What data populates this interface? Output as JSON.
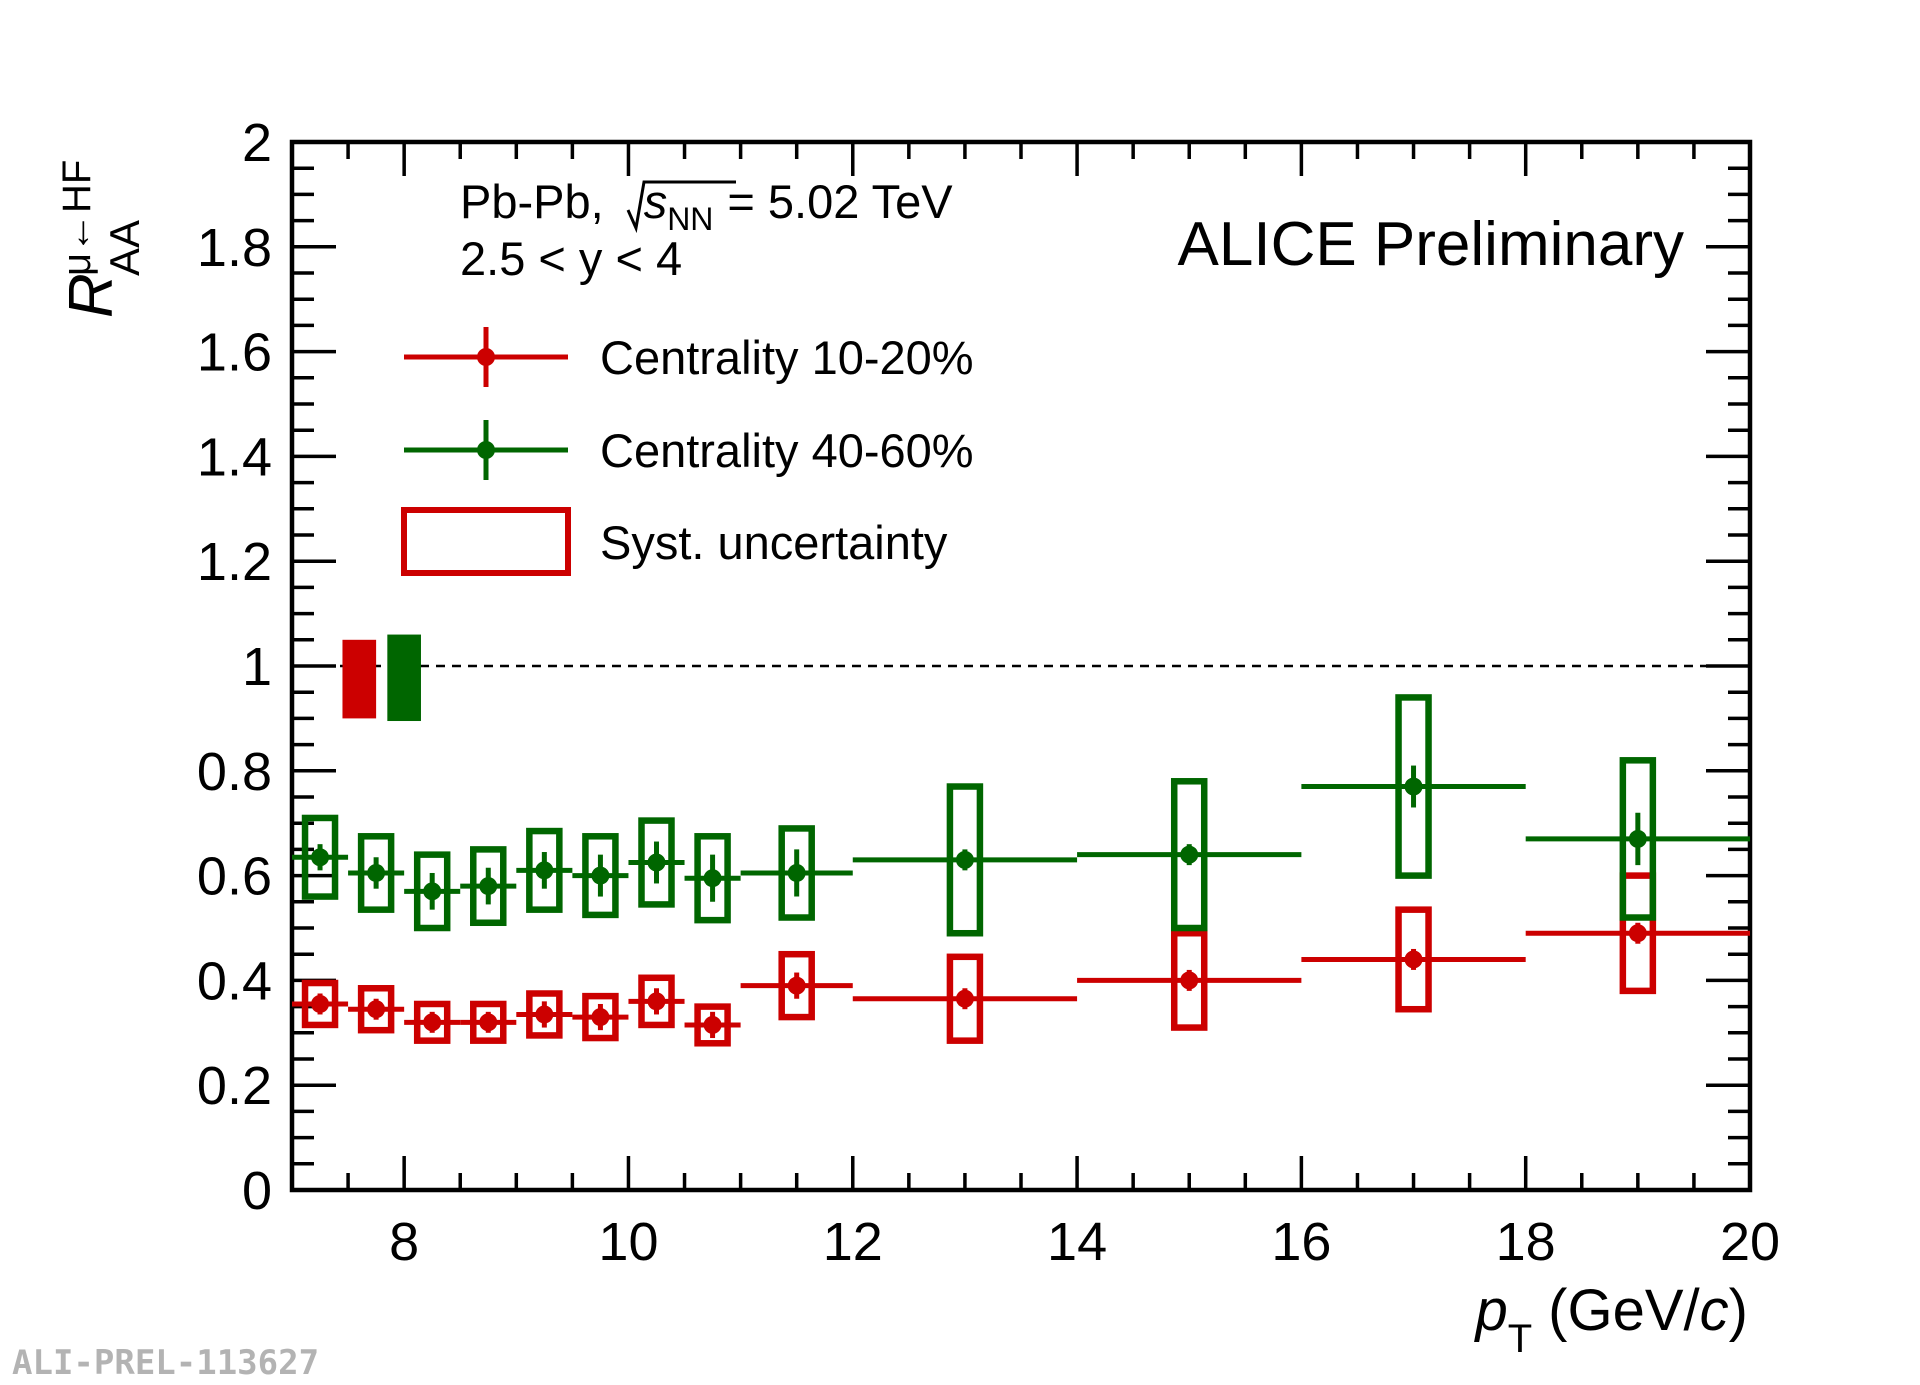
{
  "chart_data": {
    "type": "scatter",
    "title": "ALICE Preliminary",
    "collision_label": "Pb-Pb,",
    "energy_label_sym": "s",
    "energy_label_sub": "NN",
    "energy_label_value": "= 5.02 TeV",
    "rapidity_label": "2.5 < y < 4",
    "xlabel_main": "p",
    "xlabel_sub": "T",
    "xlabel_unit_pre": "(GeV/",
    "xlabel_unit_c": "c",
    "xlabel_unit_post": ")",
    "ylabel_main": "R",
    "ylabel_sub": "AA",
    "ylabel_sup": "μ←HF",
    "xlim": [
      7,
      20
    ],
    "ylim": [
      0,
      2
    ],
    "x_ticks": [
      8,
      10,
      12,
      14,
      16,
      18,
      20
    ],
    "x_tick_labels": [
      "8",
      "10",
      "12",
      "14",
      "16",
      "18",
      "20"
    ],
    "y_ticks": [
      0,
      0.2,
      0.4,
      0.6,
      0.8,
      1,
      1.2,
      1.4,
      1.6,
      1.8,
      2
    ],
    "y_tick_labels": [
      "0",
      "0.2",
      "0.4",
      "0.6",
      "0.8",
      "1",
      "1.2",
      "1.4",
      "1.6",
      "1.8",
      "2"
    ],
    "reference_line": 1,
    "series": [
      {
        "name": "Centrality 10-20%",
        "color": "#cc0000",
        "points": [
          {
            "x": 7.25,
            "xlo": 7.0,
            "xhi": 7.5,
            "y": 0.355,
            "stat": 0.02,
            "syst": 0.04
          },
          {
            "x": 7.75,
            "xlo": 7.5,
            "xhi": 8.0,
            "y": 0.345,
            "stat": 0.02,
            "syst": 0.04
          },
          {
            "x": 8.25,
            "xlo": 8.0,
            "xhi": 8.5,
            "y": 0.32,
            "stat": 0.02,
            "syst": 0.035
          },
          {
            "x": 8.75,
            "xlo": 8.5,
            "xhi": 9.0,
            "y": 0.32,
            "stat": 0.02,
            "syst": 0.035
          },
          {
            "x": 9.25,
            "xlo": 9.0,
            "xhi": 9.5,
            "y": 0.335,
            "stat": 0.025,
            "syst": 0.04
          },
          {
            "x": 9.75,
            "xlo": 9.5,
            "xhi": 10.0,
            "y": 0.33,
            "stat": 0.025,
            "syst": 0.04
          },
          {
            "x": 10.25,
            "xlo": 10.0,
            "xhi": 10.5,
            "y": 0.36,
            "stat": 0.025,
            "syst": 0.045
          },
          {
            "x": 10.75,
            "xlo": 10.5,
            "xhi": 11.0,
            "y": 0.315,
            "stat": 0.025,
            "syst": 0.035
          },
          {
            "x": 11.5,
            "xlo": 11.0,
            "xhi": 12.0,
            "y": 0.39,
            "stat": 0.025,
            "syst": 0.06
          },
          {
            "x": 13.0,
            "xlo": 12.0,
            "xhi": 14.0,
            "y": 0.365,
            "stat": 0.02,
            "syst": 0.08
          },
          {
            "x": 15.0,
            "xlo": 14.0,
            "xhi": 16.0,
            "y": 0.4,
            "stat": 0.02,
            "syst": 0.09
          },
          {
            "x": 17.0,
            "xlo": 16.0,
            "xhi": 18.0,
            "y": 0.44,
            "stat": 0.02,
            "syst": 0.095
          },
          {
            "x": 19.0,
            "xlo": 18.0,
            "xhi": 20.0,
            "y": 0.49,
            "stat": 0.02,
            "syst": 0.11
          }
        ]
      },
      {
        "name": "Centrality 40-60%",
        "color": "#006600",
        "points": [
          {
            "x": 7.25,
            "xlo": 7.0,
            "xhi": 7.5,
            "y": 0.635,
            "stat": 0.025,
            "syst": 0.075
          },
          {
            "x": 7.75,
            "xlo": 7.5,
            "xhi": 8.0,
            "y": 0.605,
            "stat": 0.03,
            "syst": 0.07
          },
          {
            "x": 8.25,
            "xlo": 8.0,
            "xhi": 8.5,
            "y": 0.57,
            "stat": 0.035,
            "syst": 0.07
          },
          {
            "x": 8.75,
            "xlo": 8.5,
            "xhi": 9.0,
            "y": 0.58,
            "stat": 0.035,
            "syst": 0.07
          },
          {
            "x": 9.25,
            "xlo": 9.0,
            "xhi": 9.5,
            "y": 0.61,
            "stat": 0.035,
            "syst": 0.075
          },
          {
            "x": 9.75,
            "xlo": 9.5,
            "xhi": 10.0,
            "y": 0.6,
            "stat": 0.04,
            "syst": 0.075
          },
          {
            "x": 10.25,
            "xlo": 10.0,
            "xhi": 10.5,
            "y": 0.625,
            "stat": 0.04,
            "syst": 0.08
          },
          {
            "x": 10.75,
            "xlo": 10.5,
            "xhi": 11.0,
            "y": 0.595,
            "stat": 0.045,
            "syst": 0.08
          },
          {
            "x": 11.5,
            "xlo": 11.0,
            "xhi": 12.0,
            "y": 0.605,
            "stat": 0.045,
            "syst": 0.085
          },
          {
            "x": 13.0,
            "xlo": 12.0,
            "xhi": 14.0,
            "y": 0.63,
            "stat": 0.02,
            "syst": 0.14
          },
          {
            "x": 15.0,
            "xlo": 14.0,
            "xhi": 16.0,
            "y": 0.64,
            "stat": 0.02,
            "syst": 0.14
          },
          {
            "x": 17.0,
            "xlo": 16.0,
            "xhi": 18.0,
            "y": 0.77,
            "stat": 0.04,
            "syst": 0.17
          },
          {
            "x": 19.0,
            "xlo": 18.0,
            "xhi": 20.0,
            "y": 0.67,
            "stat": 0.05,
            "syst": 0.15
          }
        ]
      }
    ],
    "norm_uncertainty": [
      {
        "series": "Centrality 10-20%",
        "color": "#cc0000",
        "xlo": 7.45,
        "xhi": 7.75,
        "ylo": 0.9,
        "yhi": 1.05
      },
      {
        "series": "Centrality 40-60%",
        "color": "#006600",
        "xlo": 7.85,
        "xhi": 8.15,
        "ylo": 0.895,
        "yhi": 1.06
      }
    ],
    "legend": [
      {
        "label": "Centrality 10-20%",
        "style": "marker-errorbar",
        "color": "#cc0000"
      },
      {
        "label": "Centrality 40-60%",
        "style": "marker-errorbar",
        "color": "#006600"
      },
      {
        "label": "Syst. uncertainty",
        "style": "box",
        "color": "#cc0000"
      }
    ],
    "legend_position": "top-left",
    "watermark": "ALI-PREL-113627"
  }
}
